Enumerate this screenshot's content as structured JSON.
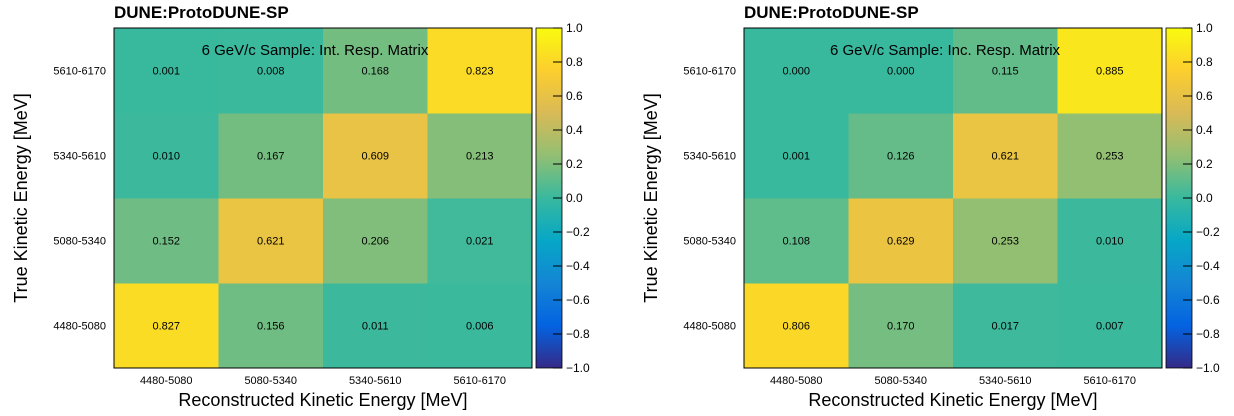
{
  "chart_data": [
    {
      "type": "heatmap",
      "experiment_label": "DUNE:ProtoDUNE-SP",
      "title": "6 GeV/c Sample: Int. Resp. Matrix",
      "xlabel": "Reconstructed Kinetic Energy [MeV]",
      "ylabel": "True Kinetic Energy [MeV]",
      "x_categories": [
        "4480-5080",
        "5080-5340",
        "5340-5610",
        "5610-6170"
      ],
      "y_categories": [
        "4480-5080",
        "5080-5340",
        "5340-5610",
        "5610-6170"
      ],
      "values": [
        [
          0.827,
          0.156,
          0.011,
          0.006
        ],
        [
          0.152,
          0.621,
          0.206,
          0.021
        ],
        [
          0.01,
          0.167,
          0.609,
          0.213
        ],
        [
          0.001,
          0.008,
          0.168,
          0.823
        ]
      ],
      "value_labels": [
        [
          "0.827",
          "0.156",
          "0.011",
          "0.006"
        ],
        [
          "0.152",
          "0.621",
          "0.206",
          "0.021"
        ],
        [
          "0.010",
          "0.167",
          "0.609",
          "0.213"
        ],
        [
          "0.001",
          "0.008",
          "0.168",
          "0.823"
        ]
      ],
      "zlim": [
        -1.0,
        1.0
      ],
      "colorbar_ticks": [
        1.0,
        0.8,
        0.6,
        0.4,
        0.2,
        0.0,
        -0.2,
        -0.4,
        -0.6,
        -0.8,
        -1.0
      ],
      "colorbar_tick_labels": [
        "1.0",
        "0.8",
        "0.6",
        "0.4",
        "0.2",
        "0.0",
        "−0.2",
        "−0.4",
        "−0.6",
        "−0.8",
        "−1.0"
      ],
      "colormap": "parula",
      "colormap_stops": [
        "#352a87",
        "#0363e1",
        "#1485d4",
        "#06a7c6",
        "#38b99e",
        "#92bf73",
        "#d9ba56",
        "#fcce2e",
        "#f9fb0e"
      ]
    },
    {
      "type": "heatmap",
      "experiment_label": "DUNE:ProtoDUNE-SP",
      "title": "6 GeV/c Sample: Inc. Resp. Matrix",
      "xlabel": "Reconstructed Kinetic Energy [MeV]",
      "ylabel": "True Kinetic Energy [MeV]",
      "x_categories": [
        "4480-5080",
        "5080-5340",
        "5340-5610",
        "5610-6170"
      ],
      "y_categories": [
        "4480-5080",
        "5080-5340",
        "5340-5610",
        "5610-6170"
      ],
      "values": [
        [
          0.806,
          0.17,
          0.017,
          0.007
        ],
        [
          0.108,
          0.629,
          0.253,
          0.01
        ],
        [
          0.001,
          0.126,
          0.621,
          0.253
        ],
        [
          0.0,
          0.0,
          0.115,
          0.885
        ]
      ],
      "value_labels": [
        [
          "0.806",
          "0.170",
          "0.017",
          "0.007"
        ],
        [
          "0.108",
          "0.629",
          "0.253",
          "0.010"
        ],
        [
          "0.001",
          "0.126",
          "0.621",
          "0.253"
        ],
        [
          "0.000",
          "0.000",
          "0.115",
          "0.885"
        ]
      ],
      "zlim": [
        -1.0,
        1.0
      ],
      "colorbar_ticks": [
        1.0,
        0.8,
        0.6,
        0.4,
        0.2,
        0.0,
        -0.2,
        -0.4,
        -0.6,
        -0.8,
        -1.0
      ],
      "colorbar_tick_labels": [
        "1.0",
        "0.8",
        "0.6",
        "0.4",
        "0.2",
        "0.0",
        "−0.2",
        "−0.4",
        "−0.6",
        "−0.8",
        "−1.0"
      ],
      "colormap": "parula",
      "colormap_stops": [
        "#352a87",
        "#0363e1",
        "#1485d4",
        "#06a7c6",
        "#38b99e",
        "#92bf73",
        "#d9ba56",
        "#fcce2e",
        "#f9fb0e"
      ]
    }
  ]
}
